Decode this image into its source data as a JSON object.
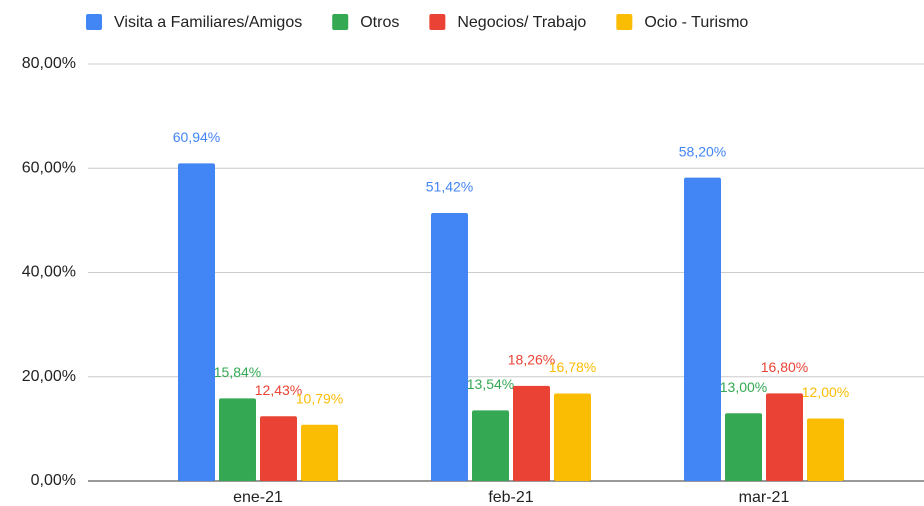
{
  "chart_data": {
    "type": "bar",
    "categories": [
      "ene-21",
      "feb-21",
      "mar-21"
    ],
    "series": [
      {
        "name": "Visita a Familiares/Amigos",
        "color": "#4285f4",
        "values": [
          60.94,
          51.42,
          58.2
        ],
        "value_labels": [
          "60,94%",
          "51,42%",
          "58,20%"
        ]
      },
      {
        "name": "Otros",
        "color": "#34a853",
        "values": [
          15.84,
          13.54,
          13.0
        ],
        "value_labels": [
          "15,84%",
          "13,54%",
          "13,00%"
        ]
      },
      {
        "name": "Negocios/ Trabajo",
        "color": "#ea4335",
        "values": [
          12.43,
          18.26,
          16.8
        ],
        "value_labels": [
          "12,43%",
          "18,26%",
          "16,80%"
        ]
      },
      {
        "name": "Ocio - Turismo",
        "color": "#fbbc04",
        "values": [
          10.79,
          16.78,
          12.0
        ],
        "value_labels": [
          "10,79%",
          "16,78%",
          "12,00%"
        ]
      }
    ],
    "ylim": [
      0,
      80
    ],
    "yticks": [
      {
        "value": 0,
        "label": "0,00%"
      },
      {
        "value": 20,
        "label": "20,00%"
      },
      {
        "value": 40,
        "label": "40,00%"
      },
      {
        "value": 60,
        "label": "60,00%"
      },
      {
        "value": 80,
        "label": "80,00%"
      }
    ],
    "grid": true,
    "legend": "top"
  }
}
